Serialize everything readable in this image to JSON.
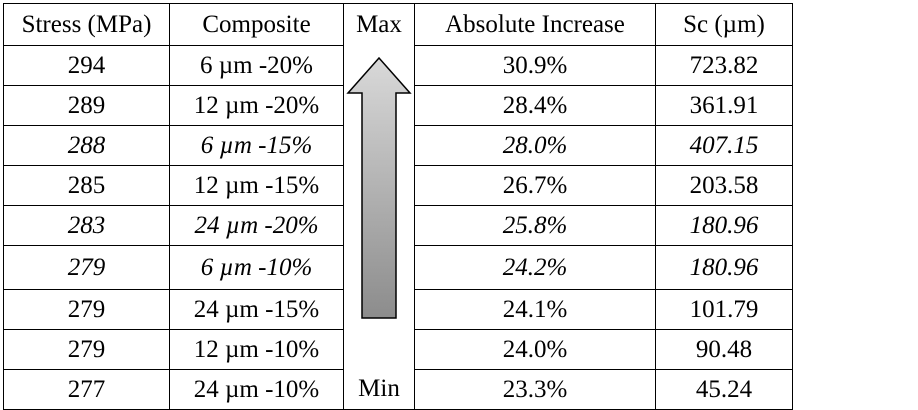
{
  "table": {
    "headers": [
      "Stress (MPa)",
      "Composite",
      "Max",
      "Absolute Increase",
      "Sc (µm)"
    ],
    "min_label": "Min",
    "arrow_icon": "up-arrow",
    "arrow_colors": {
      "top": "#d9d9d9",
      "bottom": "#8c8c8c",
      "stroke": "#000000"
    },
    "rows": [
      {
        "stress": "294",
        "composite": "6 µm -20%",
        "increase": "30.9%",
        "sc": "723.82",
        "italic": false
      },
      {
        "stress": "289",
        "composite": "12 µm -20%",
        "increase": "28.4%",
        "sc": "361.91",
        "italic": false
      },
      {
        "stress": "288",
        "composite": "6 µm -15%",
        "increase": "28.0%",
        "sc": "407.15",
        "italic": true
      },
      {
        "stress": "285",
        "composite": "12 µm -15%",
        "increase": "26.7%",
        "sc": "203.58",
        "italic": false
      },
      {
        "stress": "283",
        "composite": "24 µm -20%",
        "increase": "25.8%",
        "sc": "180.96",
        "italic": true
      },
      {
        "stress": "279",
        "composite": "6 µm -10%",
        "increase": "24.2%",
        "sc": "180.96",
        "italic": true
      },
      {
        "stress": "279",
        "composite": "24 µm -15%",
        "increase": "24.1%",
        "sc": "101.79",
        "italic": false
      },
      {
        "stress": "279",
        "composite": "12 µm -10%",
        "increase": "24.0%",
        "sc": "90.48",
        "italic": false
      },
      {
        "stress": "277",
        "composite": "24 µm -10%",
        "increase": "23.3%",
        "sc": "45.24",
        "italic": false
      }
    ]
  }
}
